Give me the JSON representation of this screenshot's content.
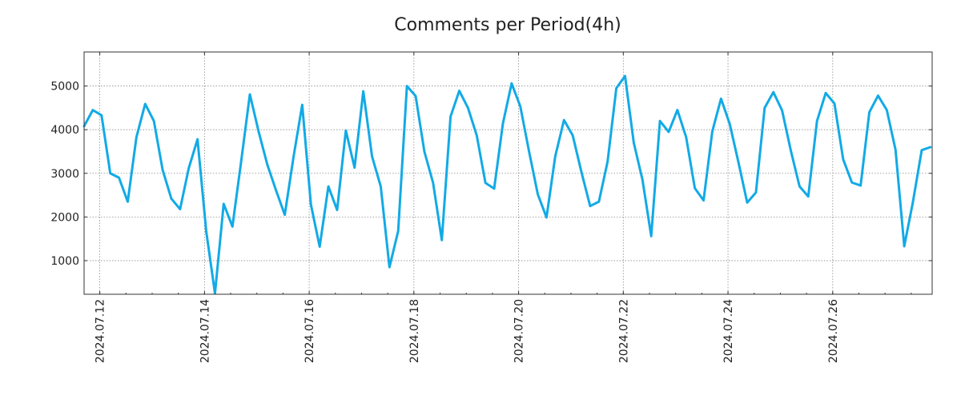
{
  "chart_data": {
    "type": "line",
    "title": "Comments per Period(4h)",
    "xlabel": "",
    "ylabel": "",
    "x_tick_labels": [
      "2024.07.12",
      "2024.07.14",
      "2024.07.16",
      "2024.07.18",
      "2024.07.20",
      "2024.07.22",
      "2024.07.24",
      "2024.07.26"
    ],
    "x_tick_days": [
      0.3,
      2.3,
      4.3,
      6.3,
      8.3,
      10.3,
      12.3,
      14.3
    ],
    "xlim_days": [
      0,
      16.2
    ],
    "period_hours": 4,
    "y_ticks": [
      1000,
      2000,
      3000,
      4000,
      5000
    ],
    "ylim": [
      230,
      5780
    ],
    "grid": true,
    "series": [
      {
        "name": "Comments",
        "color": "#12aae6",
        "values": [
          4080,
          4450,
          4330,
          3000,
          2900,
          2350,
          3830,
          4590,
          4200,
          3080,
          2420,
          2180,
          3120,
          3780,
          1670,
          250,
          2300,
          1780,
          3270,
          4810,
          3960,
          3200,
          2610,
          2050,
          3370,
          4570,
          2280,
          1320,
          2700,
          2160,
          3980,
          3130,
          4880,
          3390,
          2700,
          850,
          1680,
          5000,
          4770,
          3500,
          2780,
          1470,
          4300,
          4890,
          4500,
          3870,
          2780,
          2650,
          4140,
          5060,
          4530,
          3500,
          2520,
          1990,
          3390,
          4220,
          3870,
          3030,
          2250,
          2350,
          3270,
          4950,
          5230,
          3700,
          2850,
          1560,
          4200,
          3950,
          4450,
          3830,
          2660,
          2380,
          3960,
          4710,
          4130,
          3250,
          2330,
          2560,
          4500,
          4860,
          4440,
          3520,
          2700,
          2470,
          4200,
          4840,
          4600,
          3320,
          2790,
          2720,
          4400,
          4780,
          4450,
          3540,
          1330,
          2350,
          3530,
          3600
        ]
      }
    ]
  }
}
